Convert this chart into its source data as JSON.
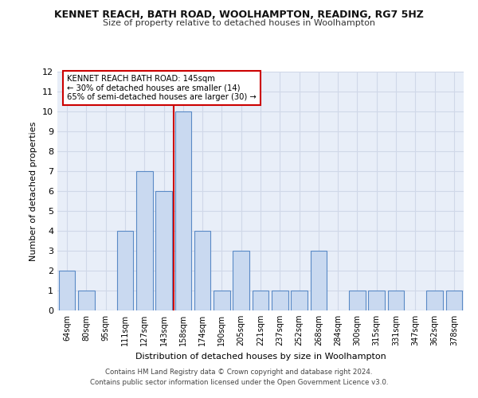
{
  "title": "KENNET REACH, BATH ROAD, WOOLHAMPTON, READING, RG7 5HZ",
  "subtitle": "Size of property relative to detached houses in Woolhampton",
  "xlabel": "Distribution of detached houses by size in Woolhampton",
  "ylabel": "Number of detached properties",
  "categories": [
    "64sqm",
    "80sqm",
    "95sqm",
    "111sqm",
    "127sqm",
    "143sqm",
    "158sqm",
    "174sqm",
    "190sqm",
    "205sqm",
    "221sqm",
    "237sqm",
    "252sqm",
    "268sqm",
    "284sqm",
    "300sqm",
    "315sqm",
    "331sqm",
    "347sqm",
    "362sqm",
    "378sqm"
  ],
  "values": [
    2,
    1,
    0,
    4,
    7,
    6,
    10,
    4,
    1,
    3,
    1,
    1,
    1,
    3,
    0,
    1,
    1,
    1,
    0,
    1,
    1
  ],
  "bar_color": "#c9d9f0",
  "bar_edge_color": "#5a8ac6",
  "subject_line_index": 5,
  "subject_line_color": "#cc0000",
  "annotation_text": "KENNET REACH BATH ROAD: 145sqm\n← 30% of detached houses are smaller (14)\n65% of semi-detached houses are larger (30) →",
  "annotation_box_color": "#ffffff",
  "annotation_box_edge": "#cc0000",
  "ylim": [
    0,
    12
  ],
  "yticks": [
    0,
    1,
    2,
    3,
    4,
    5,
    6,
    7,
    8,
    9,
    10,
    11,
    12
  ],
  "footer_line1": "Contains HM Land Registry data © Crown copyright and database right 2024.",
  "footer_line2": "Contains public sector information licensed under the Open Government Licence v3.0.",
  "grid_color": "#d0d8e8",
  "background_color": "#e8eef8"
}
